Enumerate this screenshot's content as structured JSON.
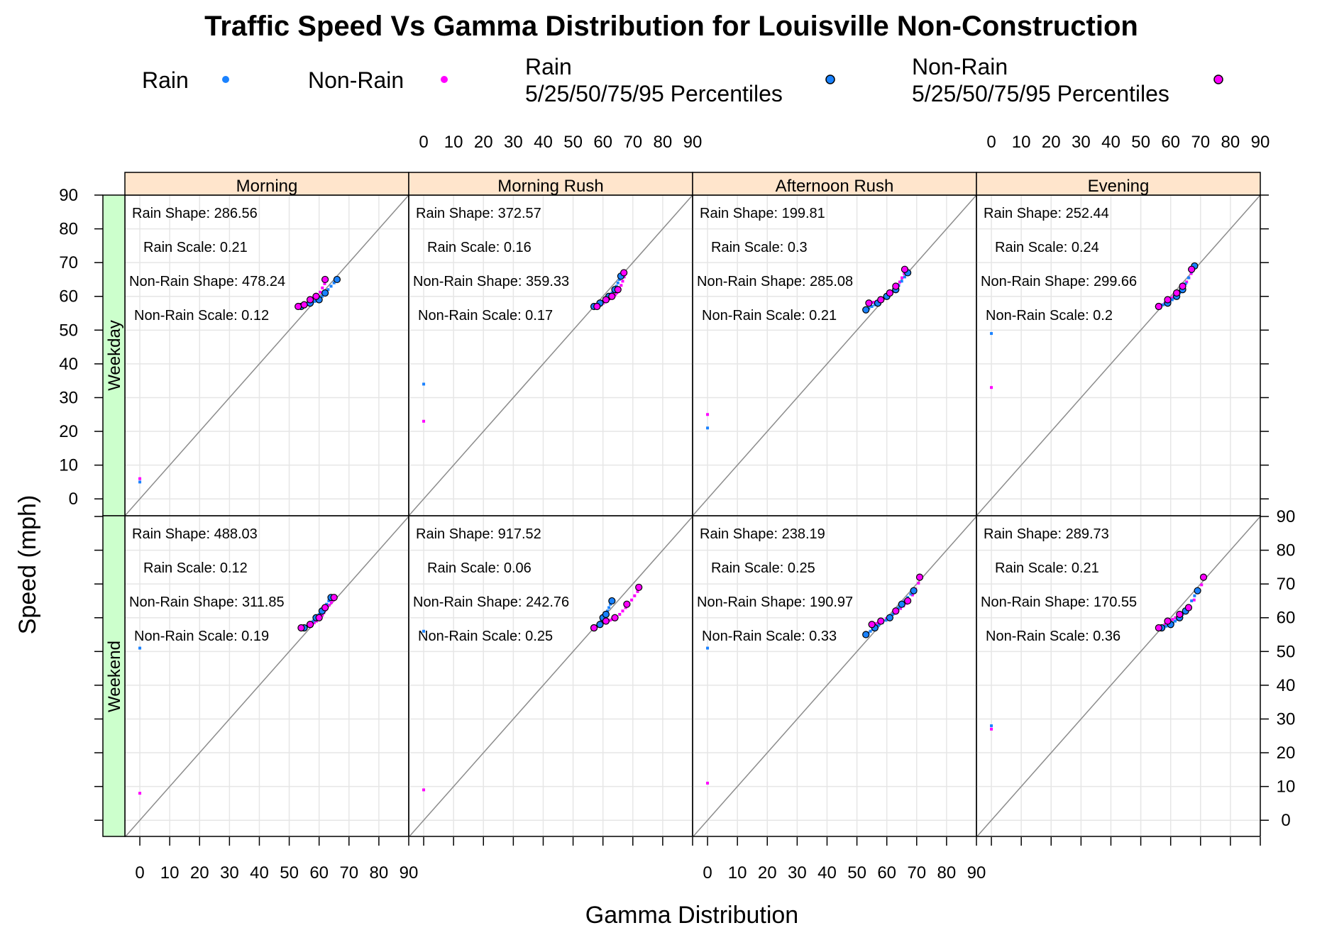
{
  "chart_data": {
    "type": "scatter",
    "title": "Traffic Speed Vs Gamma Distribution for Louisville Non-Construction",
    "xlabel": "Gamma Distribution",
    "ylabel": "Speed (mph)",
    "xlim": [
      -5,
      90
    ],
    "ylim": [
      -5,
      90
    ],
    "ticks": [
      0,
      10,
      20,
      30,
      40,
      50,
      60,
      70,
      80,
      90
    ],
    "grid": true,
    "legend_position": "top",
    "legend": [
      {
        "key": "rain",
        "label": "Rain",
        "marker": "dot",
        "color": "#1a82ff"
      },
      {
        "key": "nonrain",
        "label": "Non-Rain",
        "marker": "dot",
        "color": "#ff00ff"
      },
      {
        "key": "rain_pct",
        "label_lines": [
          "Rain",
          "5/25/50/75/95 Percentiles"
        ],
        "marker": "circle",
        "color": "#1a82ff"
      },
      {
        "key": "nonrain_pct",
        "label_lines": [
          "Non-Rain",
          "5/25/50/75/95 Percentiles"
        ],
        "marker": "circle",
        "color": "#ff00ff"
      }
    ],
    "rows": [
      "Weekday",
      "Weekend"
    ],
    "columns": [
      "Morning",
      "Morning Rush",
      "Afternoon Rush",
      "Evening"
    ],
    "panels": [
      {
        "row": "Weekday",
        "column": "Morning",
        "stats": [
          "Rain Shape: 286.56",
          "Rain Scale: 0.21",
          "Non-Rain Shape: 478.24",
          "Non-Rain Scale: 0.12"
        ],
        "rain_outlier": [
          0,
          5
        ],
        "nonrain_outlier": [
          0,
          6
        ],
        "rain_percentiles": {
          "x": [
            54,
            57,
            60,
            62,
            66
          ],
          "y": [
            57,
            58,
            59,
            61,
            65
          ]
        },
        "nonrain_percentiles": {
          "x": [
            53,
            55,
            57,
            59,
            62
          ],
          "y": [
            57,
            57.5,
            59,
            60,
            65
          ]
        }
      },
      {
        "row": "Weekday",
        "column": "Morning Rush",
        "stats": [
          "Rain Shape: 372.57",
          "Rain Scale: 0.16",
          "Non-Rain Shape: 359.33",
          "Non-Rain Scale: 0.17"
        ],
        "rain_outlier": [
          0,
          34
        ],
        "nonrain_outlier": [
          0,
          23
        ],
        "rain_percentiles": {
          "x": [
            57,
            59,
            62,
            64,
            66
          ],
          "y": [
            57,
            58,
            60,
            62,
            66
          ]
        },
        "nonrain_percentiles": {
          "x": [
            58,
            61,
            63,
            65,
            67
          ],
          "y": [
            57,
            59,
            60,
            62,
            67
          ]
        }
      },
      {
        "row": "Weekday",
        "column": "Afternoon Rush",
        "stats": [
          "Rain Shape: 199.81",
          "Rain Scale: 0.3",
          "Non-Rain Shape: 285.08",
          "Non-Rain Scale: 0.21"
        ],
        "rain_outlier": [
          0,
          21
        ],
        "nonrain_outlier": [
          0,
          25
        ],
        "rain_percentiles": {
          "x": [
            53,
            57,
            60,
            63,
            67
          ],
          "y": [
            56,
            58,
            60,
            62,
            67
          ]
        },
        "nonrain_percentiles": {
          "x": [
            54,
            58,
            61,
            63,
            66
          ],
          "y": [
            58,
            59,
            61,
            63,
            68
          ]
        }
      },
      {
        "row": "Weekday",
        "column": "Evening",
        "stats": [
          "Rain Shape: 252.44",
          "Rain Scale: 0.24",
          "Non-Rain Shape: 299.66",
          "Non-Rain Scale: 0.2"
        ],
        "rain_outlier": [
          0,
          49
        ],
        "nonrain_outlier": [
          0,
          33
        ],
        "rain_percentiles": {
          "x": [
            56,
            59,
            62,
            64,
            68
          ],
          "y": [
            57,
            58,
            60,
            62,
            69
          ]
        },
        "nonrain_percentiles": {
          "x": [
            56,
            59,
            62,
            64,
            67
          ],
          "y": [
            57,
            59,
            61,
            63,
            68
          ]
        }
      },
      {
        "row": "Weekend",
        "column": "Morning",
        "stats": [
          "Rain Shape: 488.03",
          "Rain Scale: 0.12",
          "Non-Rain Shape: 311.85",
          "Non-Rain Scale: 0.19"
        ],
        "rain_outlier": [
          0,
          51
        ],
        "nonrain_outlier": [
          0,
          8
        ],
        "rain_percentiles": {
          "x": [
            55,
            57,
            59,
            61,
            64
          ],
          "y": [
            57,
            58,
            60,
            62,
            66
          ]
        },
        "nonrain_percentiles": {
          "x": [
            54,
            57,
            60,
            62,
            65
          ],
          "y": [
            57,
            58,
            60,
            63,
            66
          ]
        }
      },
      {
        "row": "Weekend",
        "column": "Morning Rush",
        "stats": [
          "Rain Shape: 917.52",
          "Rain Scale: 0.06",
          "Non-Rain Shape: 242.76",
          "Non-Rain Scale: 0.25"
        ],
        "rain_outlier": [
          0,
          56
        ],
        "nonrain_outlier": [
          0,
          9
        ],
        "rain_percentiles": {
          "x": [
            57,
            59,
            60,
            61,
            63
          ],
          "y": [
            57,
            58,
            60,
            61,
            65
          ]
        },
        "nonrain_percentiles": {
          "x": [
            57,
            61,
            64,
            68,
            72
          ],
          "y": [
            57,
            59,
            60,
            64,
            69
          ]
        }
      },
      {
        "row": "Weekend",
        "column": "Afternoon Rush",
        "stats": [
          "Rain Shape: 238.19",
          "Rain Scale: 0.25",
          "Non-Rain Shape: 190.97",
          "Non-Rain Scale: 0.33"
        ],
        "rain_outlier": [
          0,
          51
        ],
        "nonrain_outlier": [
          0,
          11
        ],
        "rain_percentiles": {
          "x": [
            53,
            56,
            61,
            65,
            69
          ],
          "y": [
            55,
            57,
            60,
            64,
            68
          ]
        },
        "nonrain_percentiles": {
          "x": [
            55,
            58,
            63,
            67,
            71
          ],
          "y": [
            58,
            59,
            62,
            65,
            72
          ]
        }
      },
      {
        "row": "Weekend",
        "column": "Evening",
        "stats": [
          "Rain Shape: 289.73",
          "Rain Scale: 0.21",
          "Non-Rain Shape: 170.55",
          "Non-Rain Scale: 0.36"
        ],
        "rain_outlier": [
          0,
          28
        ],
        "nonrain_outlier": [
          0,
          27
        ],
        "rain_percentiles": {
          "x": [
            57,
            60,
            63,
            65,
            69
          ],
          "y": [
            57,
            58,
            60,
            62,
            68
          ]
        },
        "nonrain_percentiles": {
          "x": [
            56,
            59,
            63,
            66,
            71
          ],
          "y": [
            57,
            59,
            61,
            63,
            72
          ]
        }
      }
    ]
  },
  "colors": {
    "rain": "#1a82ff",
    "nonrain": "#ff00ff",
    "strip_top": "#ffe5cc",
    "strip_left": "#ccffcc",
    "grid": "#e6e6e6",
    "reference_line": "#8c8c8c"
  }
}
